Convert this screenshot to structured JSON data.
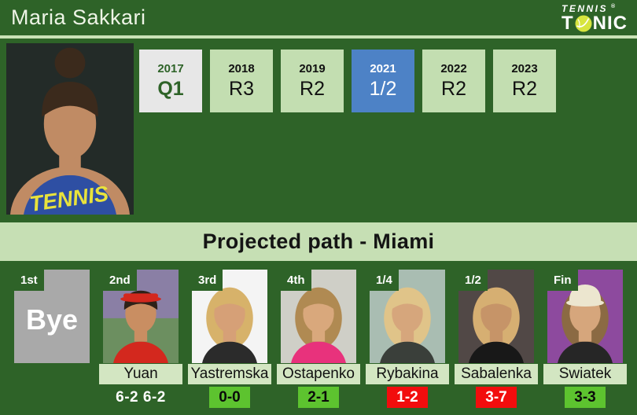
{
  "colors": {
    "page-bg": "#2e6328",
    "light-green": "#c6dfb4",
    "divider": "#c9e2b6",
    "box-green": "#c3deb1",
    "box-gray": "#e7e7e7",
    "box-blue": "#4d82c6",
    "name-bg": "#d3e6c2",
    "h2h-green": "#5dc32f",
    "h2h-red": "#f20d0d",
    "bye-gray": "#a9a9a9",
    "title-color": "#eef4e6",
    "ball": "#d7e53e"
  },
  "header": {
    "title": "Maria Sakkari",
    "logo": {
      "line1": "TENNIS",
      "registered": "®",
      "line2_left": "T",
      "line2_right": "NIC",
      "ball_icon": "tennis-ball"
    }
  },
  "history": {
    "years": [
      {
        "year": "2017",
        "result": "Q1",
        "style": "gray"
      },
      {
        "year": "2018",
        "result": "R3",
        "style": "green"
      },
      {
        "year": "2019",
        "result": "R2",
        "style": "green"
      },
      {
        "year": "2021",
        "result": "1/2",
        "style": "blue"
      },
      {
        "year": "2022",
        "result": "R2",
        "style": "green"
      },
      {
        "year": "2023",
        "result": "R2",
        "style": "green"
      }
    ]
  },
  "hero_photo": {
    "player": "Maria Sakkari",
    "bg": "#232b28",
    "skin": "#c08b64",
    "hair": "#3b2a1c",
    "shirt": "#2e4fa3",
    "bun": true,
    "skinShoulders": true,
    "shirtText": "TENNIS",
    "shirtTextColor": "#e8e23c"
  },
  "banner": {
    "title": "Projected path - Miami"
  },
  "path": {
    "rounds": [
      {
        "round": "1st",
        "type": "bye",
        "label": "Bye"
      },
      {
        "round": "2nd",
        "type": "player",
        "name": "Yuan",
        "score": "6-2 6-2",
        "score_style": "played",
        "photo": {
          "bg": "#8a7fa5",
          "bg2": "#6c8f60",
          "skin": "#c98e62",
          "hair": "#2e2118",
          "shirt": "#d3281e",
          "visor": "#d3281e"
        }
      },
      {
        "round": "3rd",
        "type": "player",
        "name": "Yastremska",
        "score": "0-0",
        "score_style": "green",
        "photo": {
          "bg": "#f4f4f4",
          "skin": "#d6a077",
          "hair": "#d7b26a",
          "shirt": "#2b2b2b",
          "longHair": true
        }
      },
      {
        "round": "4th",
        "type": "player",
        "name": "Ostapenko",
        "score": "2-1",
        "score_style": "green",
        "photo": {
          "bg": "#cfcfc7",
          "skin": "#d9a87c",
          "hair": "#b08a52",
          "shirt": "#e8327c",
          "longHair": true
        }
      },
      {
        "round": "1/4",
        "type": "player",
        "name": "Rybakina",
        "score": "1-2",
        "score_style": "red",
        "photo": {
          "bg": "#a9bdb2",
          "skin": "#d6a67c",
          "hair": "#e0c489",
          "shirt": "#3a3f3a",
          "longHair": true
        }
      },
      {
        "round": "1/2",
        "type": "player",
        "name": "Sabalenka",
        "score": "3-7",
        "score_style": "red",
        "photo": {
          "bg": "#514846",
          "skin": "#c69468",
          "hair": "#d6af72",
          "shirt": "#181818",
          "longHair": true
        }
      },
      {
        "round": "Fin",
        "type": "player",
        "name": "Swiatek",
        "score": "3-3",
        "score_style": "green",
        "photo": {
          "bg": "#8d4a9e",
          "skin": "#d6a67c",
          "hair": "#8b6a43",
          "shirt": "#262626",
          "longHair": true,
          "cap": "#ece6cf"
        }
      }
    ]
  }
}
